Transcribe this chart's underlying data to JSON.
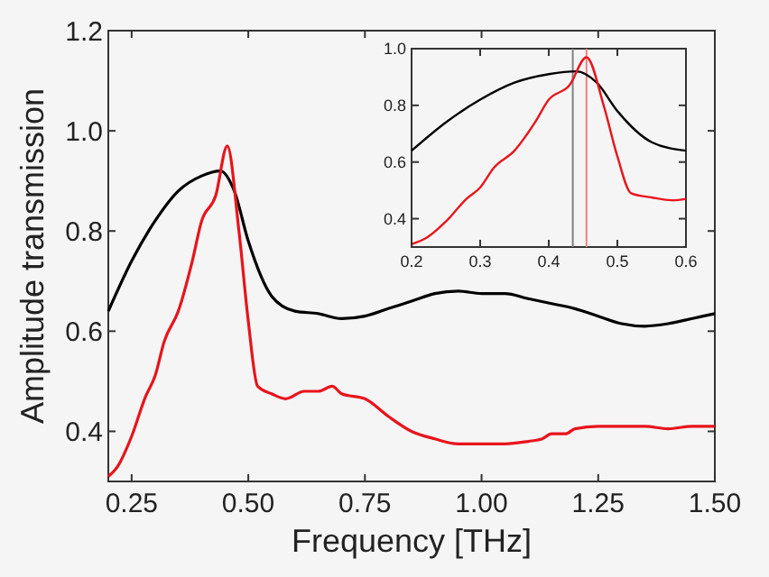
{
  "chart_data": [
    {
      "type": "line",
      "xlabel": "Frequency [THz]",
      "ylabel": "Amplitude transmission",
      "xlim": [
        0.2,
        1.5
      ],
      "ylim": [
        0.3,
        1.2
      ],
      "xticks": [
        {
          "value": 0.25,
          "label": "0.25"
        },
        {
          "value": 0.5,
          "label": "0.50"
        },
        {
          "value": 0.75,
          "label": "0.75"
        },
        {
          "value": 1.0,
          "label": "1.00"
        },
        {
          "value": 1.25,
          "label": "1.25"
        },
        {
          "value": 1.5,
          "label": "1.50"
        }
      ],
      "yticks": [
        {
          "value": 0.4,
          "label": "0.4"
        },
        {
          "value": 0.6,
          "label": "0.6"
        },
        {
          "value": 0.8,
          "label": "0.8"
        },
        {
          "value": 1.0,
          "label": "1.0"
        },
        {
          "value": 1.2,
          "label": "1.2"
        }
      ],
      "series": [
        {
          "color": "#000000",
          "x": [
            0.2,
            0.25,
            0.3,
            0.35,
            0.4,
            0.44,
            0.47,
            0.5,
            0.55,
            0.6,
            0.65,
            0.7,
            0.75,
            0.8,
            0.85,
            0.9,
            0.95,
            1.0,
            1.05,
            1.1,
            1.15,
            1.2,
            1.25,
            1.3,
            1.35,
            1.4,
            1.45,
            1.5
          ],
          "values": [
            0.64,
            0.74,
            0.82,
            0.88,
            0.91,
            0.92,
            0.88,
            0.78,
            0.67,
            0.64,
            0.635,
            0.625,
            0.63,
            0.645,
            0.66,
            0.675,
            0.68,
            0.675,
            0.675,
            0.665,
            0.655,
            0.645,
            0.63,
            0.615,
            0.61,
            0.615,
            0.625,
            0.635
          ]
        },
        {
          "color": "#e8141c",
          "x": [
            0.2,
            0.22,
            0.25,
            0.28,
            0.3,
            0.32,
            0.35,
            0.38,
            0.4,
            0.43,
            0.455,
            0.48,
            0.5,
            0.52,
            0.55,
            0.58,
            0.62,
            0.65,
            0.68,
            0.7,
            0.75,
            0.8,
            0.85,
            0.9,
            0.95,
            1.0,
            1.05,
            1.1,
            1.13,
            1.15,
            1.18,
            1.2,
            1.25,
            1.3,
            1.35,
            1.4,
            1.45,
            1.5
          ],
          "values": [
            0.31,
            0.33,
            0.39,
            0.47,
            0.51,
            0.58,
            0.64,
            0.74,
            0.82,
            0.87,
            0.97,
            0.8,
            0.62,
            0.49,
            0.475,
            0.465,
            0.48,
            0.48,
            0.49,
            0.475,
            0.465,
            0.43,
            0.4,
            0.385,
            0.375,
            0.375,
            0.375,
            0.38,
            0.385,
            0.395,
            0.395,
            0.405,
            0.41,
            0.41,
            0.41,
            0.405,
            0.41,
            0.41
          ]
        }
      ]
    },
    {
      "type": "line",
      "xlim": [
        0.2,
        0.6
      ],
      "ylim": [
        0.3,
        1.0
      ],
      "xticks": [
        0.2,
        0.3,
        0.4,
        0.5,
        0.6
      ],
      "yticks": [
        0.4,
        0.6,
        0.8,
        {
          "value": 1.0,
          "label": "1.0"
        }
      ],
      "ref_lines": [
        {
          "axis": "x",
          "value": 0.435,
          "color": "#808080"
        },
        {
          "axis": "x",
          "value": 0.455,
          "color": "#f08080"
        }
      ],
      "series": [
        {
          "color": "#000000",
          "x": [
            0.2,
            0.25,
            0.3,
            0.35,
            0.4,
            0.44,
            0.47,
            0.5,
            0.55,
            0.6
          ],
          "values": [
            0.64,
            0.74,
            0.82,
            0.88,
            0.91,
            0.92,
            0.88,
            0.78,
            0.67,
            0.64
          ]
        },
        {
          "color": "#e8141c",
          "x": [
            0.2,
            0.22,
            0.25,
            0.28,
            0.3,
            0.32,
            0.35,
            0.38,
            0.4,
            0.43,
            0.455,
            0.48,
            0.5,
            0.52,
            0.55,
            0.58,
            0.6
          ],
          "values": [
            0.31,
            0.33,
            0.39,
            0.47,
            0.51,
            0.58,
            0.64,
            0.74,
            0.82,
            0.87,
            0.97,
            0.8,
            0.62,
            0.49,
            0.475,
            0.465,
            0.47
          ]
        }
      ]
    }
  ]
}
